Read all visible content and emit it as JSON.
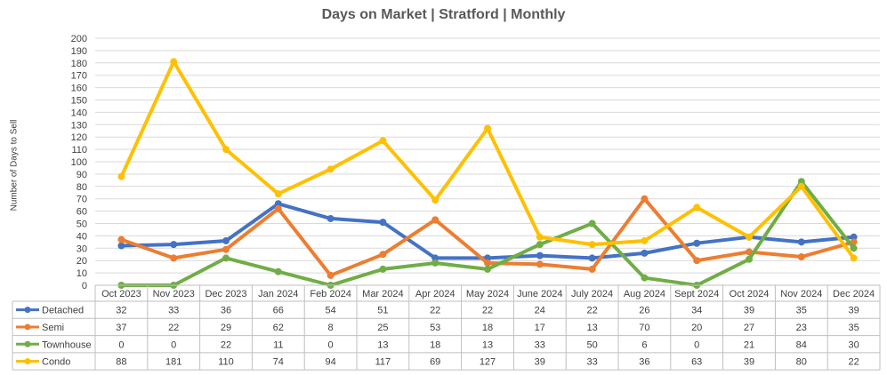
{
  "chart_data": {
    "type": "line",
    "title": "Days on Market | Stratford | Monthly",
    "xlabel": "",
    "ylabel": "Number of Days to Sell",
    "ylim": [
      0,
      200
    ],
    "yticks": [
      0,
      10,
      20,
      30,
      40,
      50,
      60,
      70,
      80,
      90,
      100,
      110,
      120,
      130,
      140,
      150,
      160,
      170,
      180,
      190,
      200
    ],
    "grid": true,
    "legend": "data-table",
    "categories": [
      "Oct 2023",
      "Nov 2023",
      "Dec 2023",
      "Jan 2024",
      "Feb 2024",
      "Mar 2024",
      "Apr 2024",
      "May 2024",
      "June 2024",
      "July 2024",
      "Aug 2024",
      "Sept 2024",
      "Oct 2024",
      "Nov 2024",
      "Dec 2024"
    ],
    "series": [
      {
        "name": "Detached",
        "color": "#4472C4",
        "values": [
          32,
          33,
          36,
          66,
          54,
          51,
          22,
          22,
          24,
          22,
          26,
          34,
          39,
          35,
          39
        ]
      },
      {
        "name": "Semi",
        "color": "#ED7D31",
        "values": [
          37,
          22,
          29,
          62,
          8,
          25,
          53,
          18,
          17,
          13,
          70,
          20,
          27,
          23,
          35
        ]
      },
      {
        "name": "Townhouse",
        "color": "#70AD47",
        "values": [
          0,
          0,
          22,
          11,
          0,
          13,
          18,
          13,
          33,
          50,
          6,
          0,
          21,
          84,
          30
        ]
      },
      {
        "name": "Condo",
        "color": "#FFC000",
        "values": [
          88,
          181,
          110,
          74,
          94,
          117,
          69,
          127,
          39,
          33,
          36,
          63,
          39,
          80,
          22
        ]
      }
    ]
  }
}
